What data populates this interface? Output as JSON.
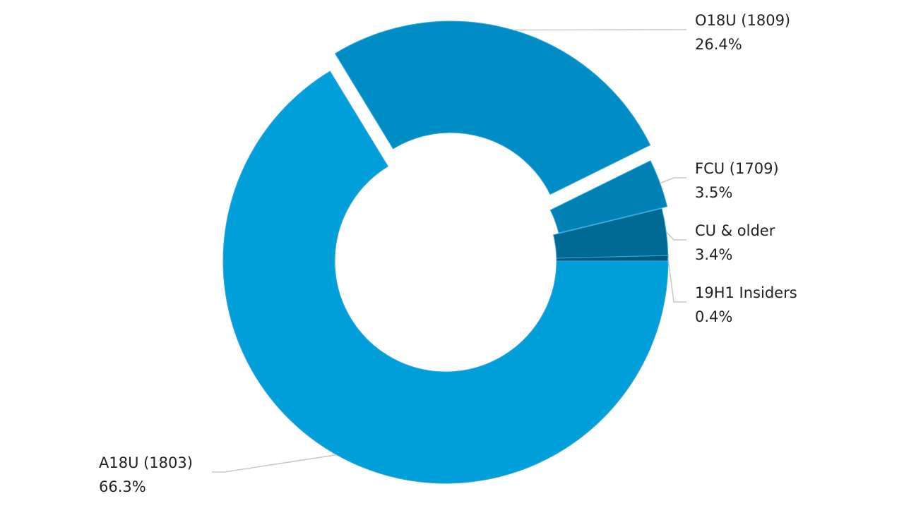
{
  "chart_data": {
    "type": "donut",
    "categories": [
      "A18U (1803)",
      "O18U (1809)",
      "FCU (1709)",
      "CU & older",
      "19H1 Insiders"
    ],
    "values": [
      66.3,
      26.4,
      3.5,
      3.4,
      0.4
    ],
    "value_labels": [
      "66.3%",
      "26.4%",
      "3.5%",
      "3.4%",
      "0.4%"
    ],
    "colors": [
      "#009fda",
      "#008cc4",
      "#0080b4",
      "#006a94",
      "#005a80"
    ]
  }
}
